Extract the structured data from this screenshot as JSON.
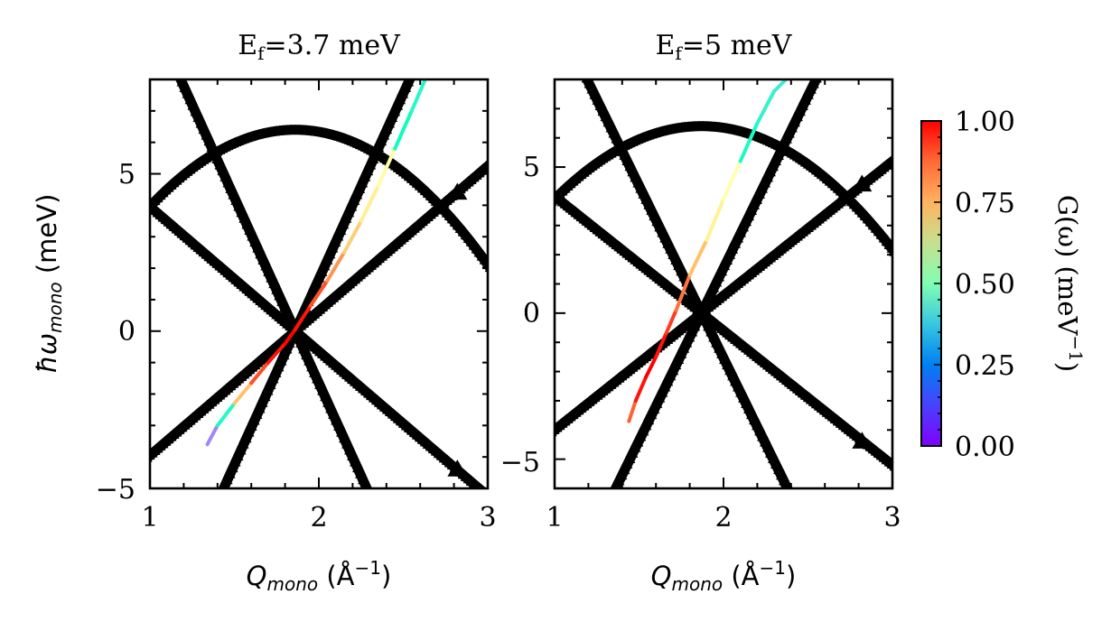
{
  "chart_data": [
    {
      "type": "scatter",
      "title": "Ef=3.7 meV",
      "title_main": "E",
      "title_sub": "f",
      "title_rest": "=3.7 meV",
      "xlabel": "Qmono (Å−1)",
      "xlabel_main": "Q",
      "xlabel_sub": "mono",
      "xlabel_unit": " (Å",
      "xlabel_exp": "−1",
      "xlabel_close": ")",
      "ylabel": "ħωmono (meV)",
      "ylabel_main": "ħω",
      "ylabel_sub": "mono",
      "ylabel_unit": " (meV)",
      "xlim": [
        1,
        3
      ],
      "ylim": [
        -5,
        8
      ],
      "xticks": [
        "1",
        "2",
        "3"
      ],
      "yticks": [
        "−5",
        "0",
        "5"
      ],
      "ytick_values": [
        -5,
        0,
        5
      ],
      "series": [
        {
          "role": "dispersion",
          "color": "#000000",
          "marker": "triangle"
        },
        {
          "role": "focused-line",
          "color_scale": "rainbow",
          "q": [
            1.34,
            1.4,
            1.5,
            1.6,
            1.7,
            1.8,
            1.86,
            1.95,
            2.05,
            2.15,
            2.25,
            2.35,
            2.45,
            2.55,
            2.63
          ],
          "e": [
            -3.6,
            -3.0,
            -2.3,
            -1.65,
            -1.0,
            -0.4,
            0.05,
            0.8,
            1.6,
            2.5,
            3.5,
            4.6,
            5.8,
            7.0,
            8.0
          ],
          "g": [
            0.05,
            0.3,
            0.6,
            0.85,
            0.95,
            1.0,
            1.0,
            0.95,
            0.85,
            0.75,
            0.65,
            0.58,
            0.5,
            0.44,
            0.4
          ]
        }
      ]
    },
    {
      "type": "scatter",
      "title": "Ef=5 meV",
      "title_main": "E",
      "title_sub": "f",
      "title_rest": "=5 meV",
      "xlabel": "Qmono (Å−1)",
      "xlabel_main": "Q",
      "xlabel_sub": "mono",
      "xlabel_unit": " (Å",
      "xlabel_exp": "−1",
      "xlabel_close": ")",
      "xlim": [
        1,
        3
      ],
      "ylim": [
        -6,
        8
      ],
      "xticks": [
        "1",
        "2",
        "3"
      ],
      "yticks": [
        "−5",
        "0",
        "5"
      ],
      "ytick_values": [
        -5,
        0,
        5
      ],
      "series": [
        {
          "role": "dispersion",
          "color": "#000000",
          "marker": "triangle"
        },
        {
          "role": "focused-line",
          "color_scale": "rainbow",
          "q": [
            1.44,
            1.48,
            1.54,
            1.6,
            1.66,
            1.72,
            1.8,
            1.9,
            2.0,
            2.1,
            2.2,
            2.3,
            2.37
          ],
          "e": [
            -3.7,
            -3.0,
            -2.2,
            -1.5,
            -0.7,
            0.1,
            1.3,
            2.5,
            3.9,
            5.2,
            6.5,
            7.6,
            8.0
          ],
          "g": [
            0.8,
            0.95,
            1.0,
            1.0,
            0.95,
            0.9,
            0.8,
            0.65,
            0.55,
            0.48,
            0.42,
            0.38,
            0.36
          ]
        }
      ]
    }
  ],
  "colorbar": {
    "label": "G(ω) (meV−1)",
    "label_main": "G(ω) (meV",
    "label_exp": "−1",
    "label_close": ")",
    "min": 0,
    "max": 1,
    "ticks": [
      "0.00",
      "0.25",
      "0.50",
      "0.75",
      "1.00"
    ],
    "colormap": "rainbow"
  }
}
